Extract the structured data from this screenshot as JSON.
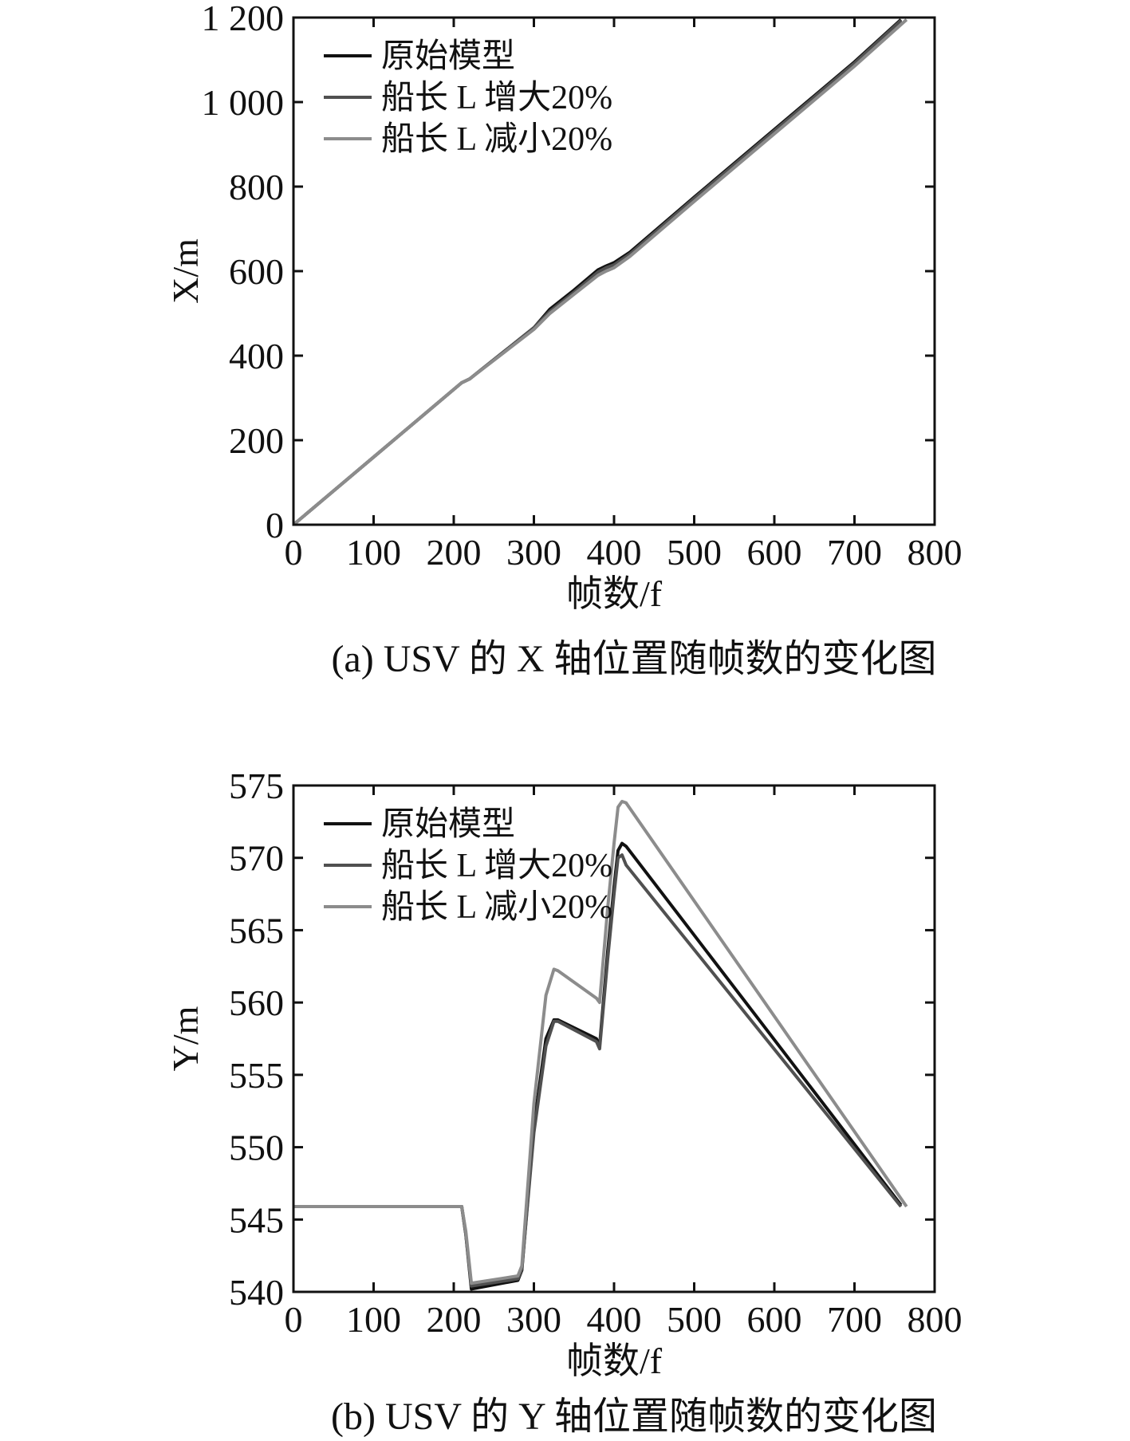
{
  "chart_data": [
    {
      "type": "line",
      "caption": "(a) USV 的 X 轴位置随帧数的变化图",
      "xlabel": "帧数/f",
      "ylabel": "X/m",
      "xlim": [
        0,
        800
      ],
      "ylim": [
        0,
        1200
      ],
      "xticks": [
        0,
        100,
        200,
        300,
        400,
        500,
        600,
        700,
        800
      ],
      "xtick_labels": [
        "0",
        "100",
        "200",
        "300",
        "400",
        "500",
        "600",
        "700",
        "800"
      ],
      "yticks": [
        0,
        200,
        400,
        600,
        800,
        1000,
        1200
      ],
      "ytick_labels": [
        "0",
        "200",
        "400",
        "600",
        "800",
        "1 000",
        "1 200"
      ],
      "grid": false,
      "legend_position": "top-left",
      "series": [
        {
          "name": "原始模型",
          "color": "#111111",
          "x": [
            0,
            100,
            210,
            220,
            300,
            320,
            350,
            380,
            390,
            400,
            420,
            500,
            600,
            700,
            758
          ],
          "y": [
            0,
            160,
            336,
            345,
            466,
            510,
            555,
            603,
            612,
            620,
            645,
            775,
            935,
            1095,
            1195
          ]
        },
        {
          "name": "船长 L 增大20%",
          "color": "#505050",
          "x": [
            0,
            100,
            210,
            220,
            300,
            320,
            350,
            380,
            390,
            400,
            420,
            500,
            600,
            700,
            758
          ],
          "y": [
            0,
            160,
            336,
            345,
            466,
            505,
            550,
            598,
            608,
            615,
            641,
            772,
            932,
            1092,
            1193
          ]
        },
        {
          "name": "船长 L 减小20%",
          "color": "#8c8c8c",
          "x": [
            0,
            100,
            210,
            220,
            300,
            320,
            350,
            380,
            390,
            400,
            420,
            500,
            600,
            700,
            765
          ],
          "y": [
            0,
            160,
            336,
            345,
            462,
            500,
            545,
            590,
            600,
            608,
            635,
            765,
            925,
            1085,
            1195
          ]
        }
      ]
    },
    {
      "type": "line",
      "caption": "(b) USV 的 Y 轴位置随帧数的变化图",
      "xlabel": "帧数/f",
      "ylabel": "Y/m",
      "xlim": [
        0,
        800
      ],
      "ylim": [
        540,
        575
      ],
      "xticks": [
        0,
        100,
        200,
        300,
        400,
        500,
        600,
        700,
        800
      ],
      "xtick_labels": [
        "0",
        "100",
        "200",
        "300",
        "400",
        "500",
        "600",
        "700",
        "800"
      ],
      "yticks": [
        540,
        545,
        550,
        555,
        560,
        565,
        570,
        575
      ],
      "ytick_labels": [
        "540",
        "545",
        "550",
        "555",
        "560",
        "565",
        "570",
        "575"
      ],
      "grid": false,
      "legend_position": "top-left",
      "series": [
        {
          "name": "原始模型",
          "color": "#111111",
          "x": [
            0,
            210,
            215,
            222,
            280,
            285,
            300,
            315,
            325,
            330,
            378,
            382,
            392,
            400,
            405,
            410,
            415,
            758
          ],
          "y": [
            545.9,
            545.9,
            544.0,
            540.2,
            540.8,
            541.5,
            551.5,
            557.5,
            558.8,
            558.8,
            557.5,
            557.0,
            563.5,
            568.0,
            570.5,
            571.0,
            570.8,
            546.0
          ]
        },
        {
          "name": "船长 L 增大20%",
          "color": "#505050",
          "x": [
            0,
            210,
            215,
            222,
            280,
            285,
            300,
            315,
            325,
            330,
            378,
            382,
            392,
            400,
            405,
            410,
            415,
            758
          ],
          "y": [
            545.9,
            545.9,
            544.0,
            540.4,
            540.9,
            541.6,
            551.0,
            557.0,
            558.7,
            558.7,
            557.3,
            556.8,
            563.0,
            567.5,
            570.0,
            570.2,
            569.5,
            545.9
          ]
        },
        {
          "name": "船长 L 减小20%",
          "color": "#8c8c8c",
          "x": [
            0,
            210,
            215,
            222,
            280,
            285,
            300,
            315,
            325,
            330,
            378,
            382,
            392,
            400,
            405,
            410,
            415,
            765
          ],
          "y": [
            545.9,
            545.9,
            544.2,
            540.6,
            541.1,
            541.8,
            553.0,
            560.5,
            562.3,
            562.2,
            560.3,
            560.0,
            566.5,
            571.0,
            573.5,
            573.9,
            573.8,
            545.9
          ]
        }
      ]
    }
  ]
}
